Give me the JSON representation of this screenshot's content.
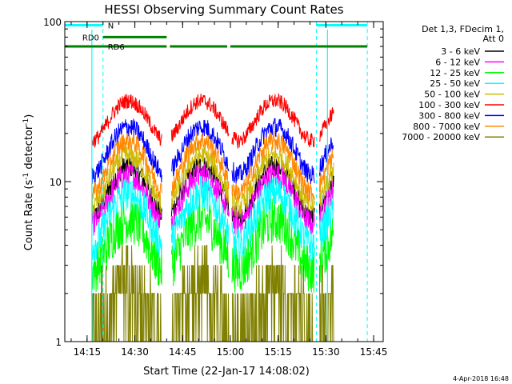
{
  "chart_data": {
    "type": "line",
    "title": "HESSI Observing Summary Count Rates",
    "xlabel": "Start Time (22-Jan-17 14:08:02)",
    "ylabel": "Count Rate (s⁻¹ detector⁻¹)",
    "ylabel_main": "Count Rate (s",
    "ylabel_sup1": "-1",
    "ylabel_mid": " detector",
    "ylabel_sup2": "-1",
    "ylabel_end": ")",
    "xscale": "time",
    "yscale": "log",
    "xlim_minutes": [
      0,
      100
    ],
    "ylim": [
      1,
      100
    ],
    "xticks": [
      {
        "label": "14:15",
        "value": 7
      },
      {
        "label": "14:30",
        "value": 22
      },
      {
        "label": "14:45",
        "value": 37
      },
      {
        "label": "15:00",
        "value": 52
      },
      {
        "label": "15:15",
        "value": 67
      },
      {
        "label": "15:30",
        "value": 82
      },
      {
        "label": "15:45",
        "value": 97
      }
    ],
    "yticks": [
      {
        "label": "1",
        "value": 1
      },
      {
        "label": "10",
        "value": 10
      },
      {
        "label": "100",
        "value": 100
      }
    ],
    "legend_header": [
      "Det 1,3, FDecim 1,",
      "Att 0"
    ],
    "legend_placement": "right",
    "series": [
      {
        "name": "3 - 6 keV",
        "color": "#000000",
        "a": 12.5,
        "b": 6.5,
        "noise": 0.1
      },
      {
        "name": "6 - 12 keV",
        "color": "#ff00ff",
        "a": 11.0,
        "b": 5.5,
        "noise": 0.12
      },
      {
        "name": "12 - 25 keV",
        "color": "#00ff00",
        "a": 5.8,
        "b": 3.0,
        "noise": 0.22
      },
      {
        "name": "25 - 50 keV",
        "color": "#00ffff",
        "a": 8.5,
        "b": 4.5,
        "noise": 0.16
      },
      {
        "name": "50 - 100 keV",
        "color": "#ccbb00",
        "a": 14.5,
        "b": 7.5,
        "noise": 0.1
      },
      {
        "name": "100 - 300 keV",
        "color": "#ff0000",
        "a": 32,
        "b": 14,
        "noise": 0.07
      },
      {
        "name": "300 - 800 keV",
        "color": "#0000ff",
        "a": 22,
        "b": 11,
        "noise": 0.09
      },
      {
        "name": "800 - 7000 keV",
        "color": "#ff8800",
        "a": 18,
        "b": 9.5,
        "noise": 0.09
      },
      {
        "name": "7000 - 20000 keV",
        "color": "#808000",
        "a": 2.2,
        "b": 1.2,
        "noise": 0.3
      }
    ],
    "sun_windows_minutes": [
      [
        8.5,
        30.5
      ],
      [
        33.5,
        51.5
      ],
      [
        52.5,
        78.5
      ],
      [
        80,
        84.5
      ]
    ],
    "markers": [
      {
        "label": "N",
        "color": "#00ffff",
        "segments": [
          [
            0,
            12
          ],
          [
            79,
            95
          ]
        ],
        "y": 95
      },
      {
        "label": "RD0",
        "color": "#008000",
        "segments": [
          [
            12,
            32
          ]
        ],
        "y": 80
      },
      {
        "label": "RD6",
        "color": "#008000",
        "segments": [
          [
            0,
            12
          ],
          [
            12,
            32
          ],
          [
            33,
            51
          ],
          [
            52,
            79
          ],
          [
            79,
            95
          ]
        ],
        "y": 70
      }
    ],
    "vlines_minutes": [
      12,
      79,
      95
    ],
    "grid": false
  },
  "footer_date": "4-Apr-2018 16:48"
}
